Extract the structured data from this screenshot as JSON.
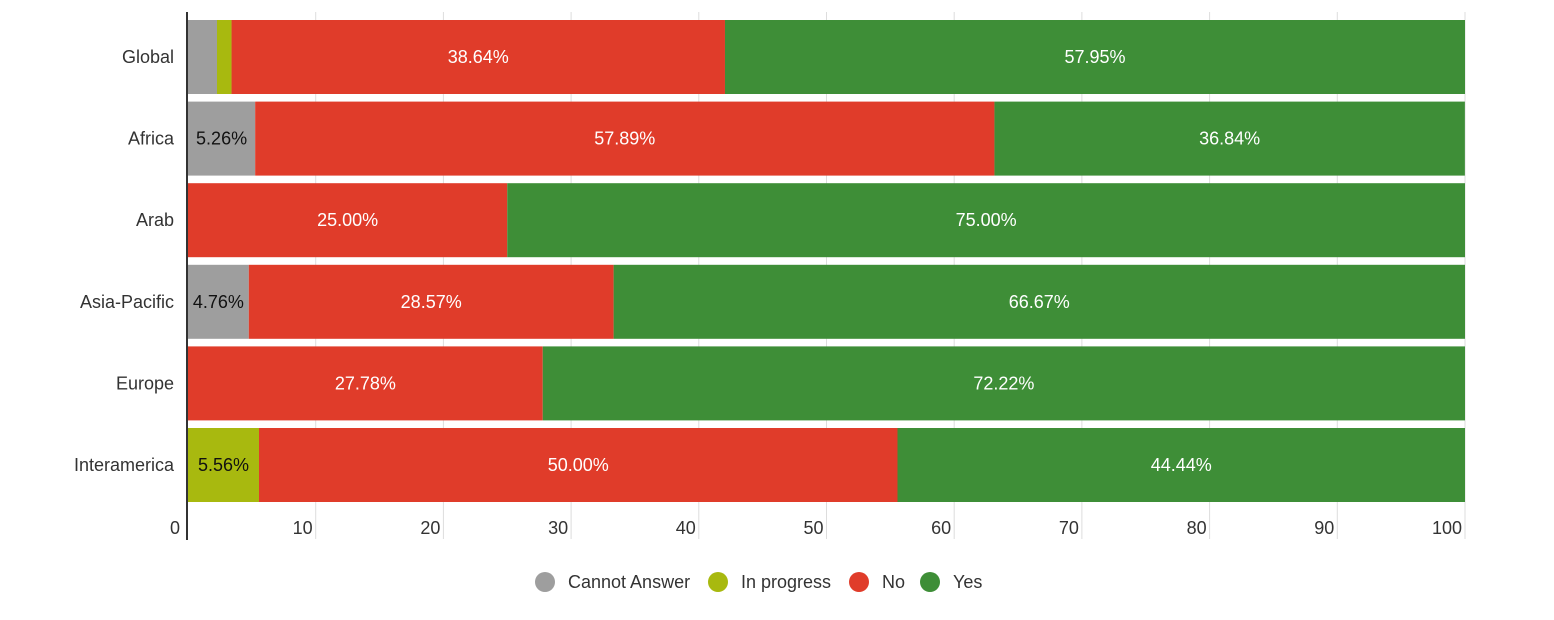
{
  "chart_data": {
    "type": "bar",
    "orientation": "horizontal",
    "stacked": true,
    "categories": [
      "Global",
      "Africa",
      "Arab",
      "Asia-Pacific",
      "Europe",
      "Interamerica"
    ],
    "series": [
      {
        "name": "Cannot Answer",
        "color": "#9e9e9e",
        "label_color": "#111111",
        "values": [
          2.27,
          5.26,
          0,
          4.76,
          0,
          0
        ],
        "labels": [
          "",
          "5.26%",
          "",
          "4.76%",
          "",
          ""
        ]
      },
      {
        "name": "In progress",
        "color": "#a8b90f",
        "label_color": "#111111",
        "values": [
          1.14,
          0,
          0,
          0,
          0,
          5.56
        ],
        "labels": [
          "",
          "",
          "",
          "",
          "",
          "5.56%"
        ]
      },
      {
        "name": "No",
        "color": "#e03c2a",
        "label_color": "#ffffff",
        "values": [
          38.64,
          57.89,
          25.0,
          28.57,
          27.78,
          50.0
        ],
        "labels": [
          "38.64%",
          "57.89%",
          "25.00%",
          "28.57%",
          "27.78%",
          "50.00%"
        ]
      },
      {
        "name": "Yes",
        "color": "#3e8e37",
        "label_color": "#ffffff",
        "values": [
          57.95,
          36.84,
          75.0,
          66.67,
          72.22,
          44.44
        ],
        "labels": [
          "57.95%",
          "36.84%",
          "75.00%",
          "66.67%",
          "72.22%",
          "44.44%"
        ]
      }
    ],
    "xlim": [
      0,
      100
    ],
    "xticks": [
      "0",
      "10",
      "20",
      "30",
      "40",
      "50",
      "60",
      "70",
      "80",
      "90",
      "100"
    ],
    "grid": true,
    "legend_position": "bottom"
  }
}
